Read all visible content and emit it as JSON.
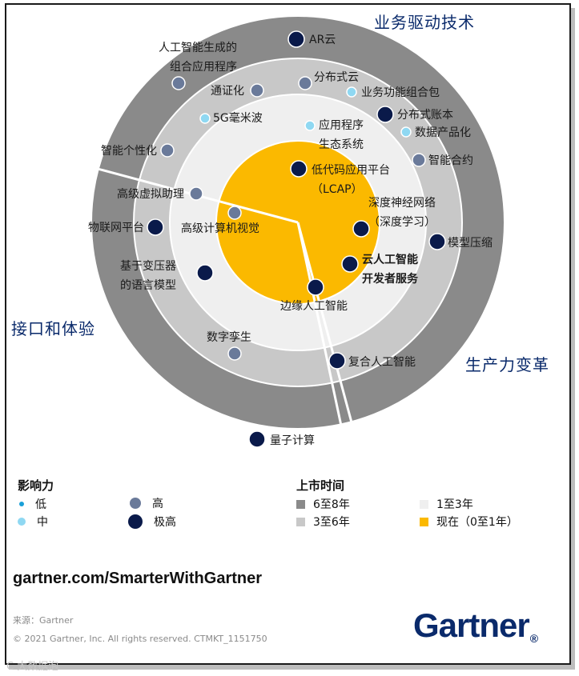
{
  "sectors": {
    "business": "业务驱动技术",
    "interface": "接口和体验",
    "productivity": "生产力变革"
  },
  "colors": {
    "ring_6_8": "#8a8a8a",
    "ring_3_6": "#c8c8c8",
    "ring_1_3": "#efefef",
    "ring_now": "#fbb900",
    "impact_low": "#1aa0d8",
    "impact_medium": "#8fd8f2",
    "impact_high": "#6a7a9a",
    "impact_very_high": "#0a1a4a",
    "brand": "#0a2a6b"
  },
  "technologies": [
    {
      "label": "AR云",
      "impact": "very_high"
    },
    {
      "label": "人工智能生成的\n组合应用程序",
      "impact": "high"
    },
    {
      "label": "通证化",
      "impact": "high"
    },
    {
      "label": "分布式云",
      "impact": "high"
    },
    {
      "label": "业务功能组合包",
      "impact": "medium"
    },
    {
      "label": "分布式账本",
      "impact": "very_high"
    },
    {
      "label": "5G毫米波",
      "impact": "medium"
    },
    {
      "label": "应用程序\n生态系统",
      "impact": "medium"
    },
    {
      "label": "数据产品化",
      "impact": "medium"
    },
    {
      "label": "智能合约",
      "impact": "high"
    },
    {
      "label": "智能个性化",
      "impact": "high"
    },
    {
      "label": "低代码应用平台\n（LCAP）",
      "impact": "very_high"
    },
    {
      "label": "高级虚拟助理",
      "impact": "high"
    },
    {
      "label": "深度神经网络\n（深度学习）",
      "impact": "very_high"
    },
    {
      "label": "物联网平台",
      "impact": "very_high"
    },
    {
      "label": "高级计算机视觉",
      "impact": "high"
    },
    {
      "label": "模型压缩",
      "impact": "very_high"
    },
    {
      "label": "基于变压器\n的语言模型",
      "impact": "very_high"
    },
    {
      "label": "云人工智能\n开发者服务",
      "impact": "very_high"
    },
    {
      "label": "边缘人工智能",
      "impact": "very_high"
    },
    {
      "label": "数字孪生",
      "impact": "high"
    },
    {
      "label": "复合人工智能",
      "impact": "very_high"
    },
    {
      "label": "量子计算",
      "impact": "very_high"
    }
  ],
  "legend": {
    "impact_title": "影响力",
    "impact_low": "低",
    "impact_medium": "中",
    "impact_high": "高",
    "impact_very_high": "极高",
    "time_title": "上市时间",
    "time_6_8": "6至8年",
    "time_3_6": "3至6年",
    "time_1_3": "1至3年",
    "time_now": "现在（0至1年）"
  },
  "footer": {
    "url": "gartner.com/SmarterWithGartner",
    "source": "来源：Gartner",
    "copyright": "© 2021 Gartner, Inc. All rights reserved. CTMKT_1151750",
    "logo": "Gartner",
    "logo_mark": "®",
    "watermark": "C 大数据泡"
  }
}
